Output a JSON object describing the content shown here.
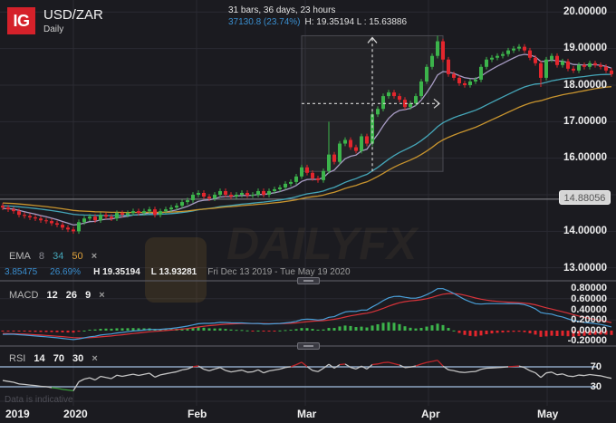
{
  "header": {
    "logo": "IG",
    "symbol": "USD/ZAR",
    "interval": "Daily"
  },
  "measure": {
    "line1": "31 bars, 36 days, 23 hours",
    "change": "37130.8 (23.74%)",
    "hl": "H: 19.35194 L : 15.63886"
  },
  "ema_legend": {
    "label": "EMA",
    "p1": "8",
    "p2": "34",
    "p3": "50",
    "close": "×"
  },
  "stats": {
    "change": "3.85475",
    "pct": "26.69%",
    "high": "H 19.35194",
    "low": "L 13.93281",
    "range": "Fri Dec 13 2019 - Tue May 19 2020"
  },
  "macd_legend": {
    "label": "MACD",
    "fast": "12",
    "slow": "26",
    "signal": "9",
    "close": "×"
  },
  "rsi_legend": {
    "label": "RSI",
    "period": "14",
    "upper": "70",
    "lower": "30",
    "close": "×"
  },
  "disclaimer": "Data is indicative",
  "price_axis": [
    "20.00000",
    "19.00000",
    "18.00000",
    "17.00000",
    "16.00000",
    "14.00000",
    "13.00000"
  ],
  "price_marker": "14.88056",
  "macd_axis": [
    "0.80000",
    "0.60000",
    "0.40000",
    "0.20000",
    "0.00000",
    "-0.20000"
  ],
  "rsi_axis": [
    "70",
    "30"
  ],
  "time_axis": [
    "2019",
    "2020",
    "Feb",
    "Mar",
    "Apr",
    "May"
  ],
  "colors": {
    "background": "#1b1b20",
    "grid": "#2b2b32",
    "bull": "#3cb44b",
    "bear": "#e3262d",
    "ema8": "#a89cc4",
    "ema34": "#45a6b8",
    "ema50": "#c8942e",
    "macd": "#4a9fd8",
    "signal": "#d8333a",
    "hist_pos": "#3cb44b",
    "hist_neg": "#e3262d",
    "rsi": "#c4c4c4",
    "rsi_overbought": "#c0262b",
    "rsi_oversold": "#3a9a3a",
    "rsi_bands": "#8ea6c2",
    "price_line": "#8a8a8f",
    "accent_blue": "#3a8fd0",
    "logo_red": "#d5212a"
  },
  "chart_data": {
    "type": "candlestick",
    "title": "USD/ZAR",
    "subtitle": "Daily",
    "x_range": [
      "Fri Dec 13 2019",
      "Tue May 19 2020"
    ],
    "ylim": [
      12.7,
      20.3
    ],
    "y_ticks": [
      13,
      14,
      15,
      16,
      17,
      18,
      19,
      20
    ],
    "time_ticks": [
      {
        "label": "2020",
        "bar": 13
      },
      {
        "label": "Feb",
        "bar": 35.67
      },
      {
        "label": "Mar",
        "bar": 55.67
      },
      {
        "label": "Apr",
        "bar": 78.33
      },
      {
        "label": "May",
        "bar": 100.17
      }
    ],
    "grid": true,
    "candles": {
      "first_open": 14.7,
      "wick": 0.07,
      "close": [
        14.65,
        14.6,
        14.55,
        14.45,
        14.42,
        14.38,
        14.35,
        14.3,
        14.28,
        14.22,
        14.18,
        14.1,
        14.05,
        14.0,
        14.25,
        14.35,
        14.4,
        14.3,
        14.45,
        14.4,
        14.35,
        14.5,
        14.45,
        14.5,
        14.55,
        14.5,
        14.55,
        14.6,
        14.45,
        14.55,
        14.6,
        14.65,
        14.7,
        14.8,
        14.85,
        15.0,
        15.05,
        14.95,
        14.9,
        15.0,
        15.1,
        15.0,
        14.95,
        15.0,
        15.05,
        14.98,
        15.0,
        15.1,
        15.0,
        15.1,
        15.15,
        15.2,
        15.3,
        15.35,
        15.5,
        15.75,
        15.6,
        15.45,
        15.4,
        15.65,
        16.1,
        15.9,
        16.4,
        16.5,
        16.3,
        16.2,
        16.6,
        16.4,
        17.2,
        17.35,
        17.7,
        17.8,
        17.7,
        17.6,
        17.4,
        17.5,
        17.7,
        18.1,
        18.5,
        18.8,
        19.2,
        18.7,
        18.3,
        18.2,
        18.05,
        18.0,
        18.1,
        18.15,
        18.5,
        18.7,
        18.75,
        18.8,
        18.85,
        18.95,
        19.0,
        19.05,
        18.95,
        18.75,
        18.6,
        18.2,
        18.7,
        18.8,
        18.55,
        18.65,
        18.45,
        18.4,
        18.55,
        18.5,
        18.6,
        18.55,
        18.5,
        18.4,
        18.3
      ],
      "extremes": {
        "high": {
          "bar": 80,
          "value": 19.35194
        },
        "low": {
          "bar": 13,
          "value": 13.93281
        },
        "spikes": [
          {
            "bar": 60,
            "high": 17.0
          },
          {
            "bar": 99,
            "low": 17.95
          }
        ]
      }
    },
    "horizontal_line": 14.88056,
    "measurement": {
      "start_bar": 55,
      "end_bar": 81,
      "low": 15.63886,
      "high": 19.35194,
      "bars": 31,
      "duration": "36 days, 23 hours",
      "change": 37130.8,
      "change_pct": 23.74
    },
    "indicators": {
      "ema": [
        {
          "period": 8,
          "seed": 14.62,
          "color_key": "ema8"
        },
        {
          "period": 34,
          "seed": 14.7,
          "color_key": "ema34"
        },
        {
          "period": 50,
          "seed": 14.78,
          "color_key": "ema50"
        }
      ],
      "macd": {
        "fast": 12,
        "slow": 26,
        "signal": 9,
        "seed_fast": 14.62,
        "seed_slow": 14.7,
        "seed_signal": -0.05,
        "ylim": [
          -0.25,
          0.85
        ],
        "y_ticks": [
          0.8,
          0.6,
          0.4,
          0.2,
          0.0,
          -0.2
        ]
      },
      "rsi": {
        "period": 14,
        "upper": 70,
        "lower": 30,
        "seed_avg_gain": 0.04,
        "seed_avg_loss": 0.05
      }
    }
  }
}
